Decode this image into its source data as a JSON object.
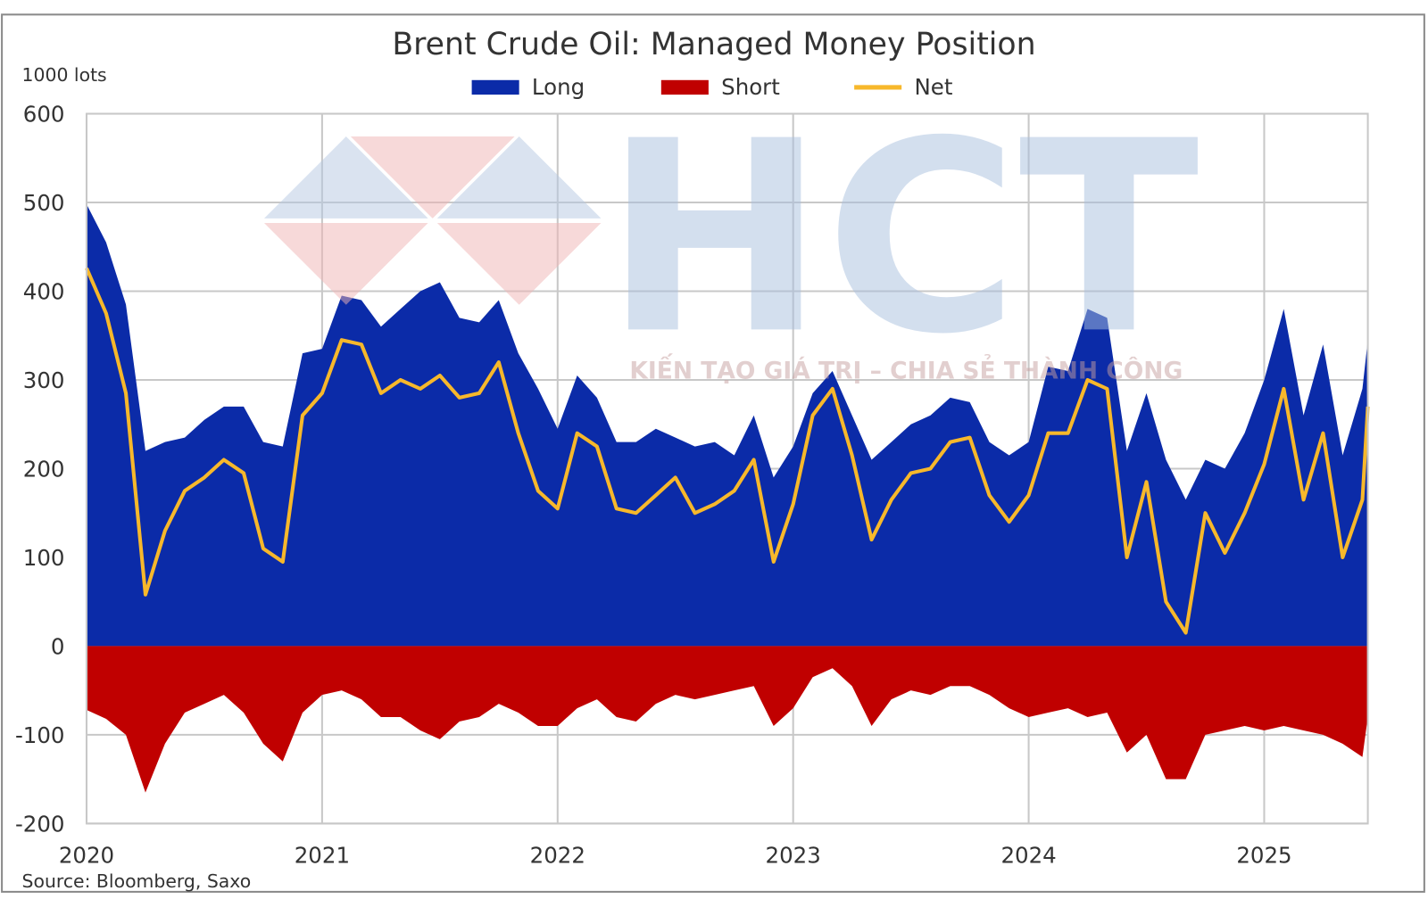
{
  "chart_data": {
    "type": "area",
    "title": "Brent Crude Oil: Managed Money Position",
    "y_label": "1000 lots",
    "source": "Source: Bloomberg, Saxo",
    "watermark": {
      "logo": "HCT",
      "slogan": "KIẾN TẠO GIÁ TRỊ – CHIA SẺ THÀNH CÔNG"
    },
    "x": [
      2020.0,
      2020.083,
      2020.167,
      2020.25,
      2020.333,
      2020.417,
      2020.5,
      2020.583,
      2020.667,
      2020.75,
      2020.833,
      2020.917,
      2021.0,
      2021.083,
      2021.167,
      2021.25,
      2021.333,
      2021.417,
      2021.5,
      2021.583,
      2021.667,
      2021.75,
      2021.833,
      2021.917,
      2022.0,
      2022.083,
      2022.167,
      2022.25,
      2022.333,
      2022.417,
      2022.5,
      2022.583,
      2022.667,
      2022.75,
      2022.833,
      2022.917,
      2023.0,
      2023.083,
      2023.167,
      2023.25,
      2023.333,
      2023.417,
      2023.5,
      2023.583,
      2023.667,
      2023.75,
      2023.833,
      2023.917,
      2024.0,
      2024.083,
      2024.167,
      2024.25,
      2024.333,
      2024.417,
      2024.5,
      2024.583,
      2024.667,
      2024.75,
      2024.833,
      2024.917,
      2025.0,
      2025.083,
      2025.167,
      2025.25,
      2025.333,
      2025.417,
      2025.44
    ],
    "xlim": [
      2020,
      2025.44
    ],
    "xticks": [
      2020,
      2021,
      2022,
      2023,
      2024,
      2025
    ],
    "ylim": [
      -200,
      600
    ],
    "yticks": [
      -200,
      -100,
      0,
      100,
      200,
      300,
      400,
      500,
      600
    ],
    "grid": true,
    "legend": "top",
    "series": [
      {
        "name": "Long",
        "color": "#0b2ba8",
        "kind": "area",
        "values": [
          498,
          455,
          385,
          220,
          230,
          235,
          255,
          270,
          270,
          230,
          225,
          330,
          335,
          395,
          390,
          360,
          380,
          400,
          410,
          370,
          365,
          390,
          330,
          290,
          245,
          305,
          280,
          230,
          230,
          245,
          235,
          225,
          230,
          215,
          260,
          190,
          225,
          285,
          310,
          260,
          210,
          230,
          250,
          260,
          280,
          275,
          230,
          215,
          230,
          315,
          310,
          380,
          370,
          220,
          285,
          210,
          165,
          210,
          200,
          240,
          300,
          380,
          260,
          340,
          215,
          290,
          345
        ]
      },
      {
        "name": "Short",
        "color": "#c00000",
        "kind": "area",
        "values": [
          -72,
          -82,
          -100,
          -165,
          -110,
          -75,
          -65,
          -55,
          -75,
          -110,
          -130,
          -75,
          -55,
          -50,
          -60,
          -80,
          -80,
          -95,
          -105,
          -85,
          -80,
          -65,
          -75,
          -90,
          -90,
          -70,
          -60,
          -80,
          -85,
          -65,
          -55,
          -60,
          -55,
          -50,
          -45,
          -90,
          -70,
          -35,
          -25,
          -45,
          -90,
          -60,
          -50,
          -55,
          -45,
          -45,
          -55,
          -70,
          -80,
          -75,
          -70,
          -80,
          -75,
          -120,
          -100,
          -150,
          -150,
          -100,
          -95,
          -90,
          -95,
          -90,
          -95,
          -100,
          -110,
          -125,
          -80
        ]
      },
      {
        "name": "Net",
        "color": "#f7b82b",
        "kind": "line",
        "values": [
          426,
          375,
          285,
          58,
          130,
          175,
          190,
          210,
          195,
          110,
          95,
          260,
          285,
          345,
          340,
          285,
          300,
          290,
          305,
          280,
          285,
          320,
          240,
          175,
          155,
          240,
          225,
          155,
          150,
          170,
          190,
          150,
          160,
          175,
          210,
          95,
          160,
          260,
          290,
          215,
          120,
          165,
          195,
          200,
          230,
          235,
          170,
          140,
          170,
          240,
          240,
          300,
          290,
          100,
          185,
          50,
          15,
          150,
          105,
          150,
          205,
          290,
          165,
          240,
          100,
          165,
          270
        ]
      }
    ]
  }
}
